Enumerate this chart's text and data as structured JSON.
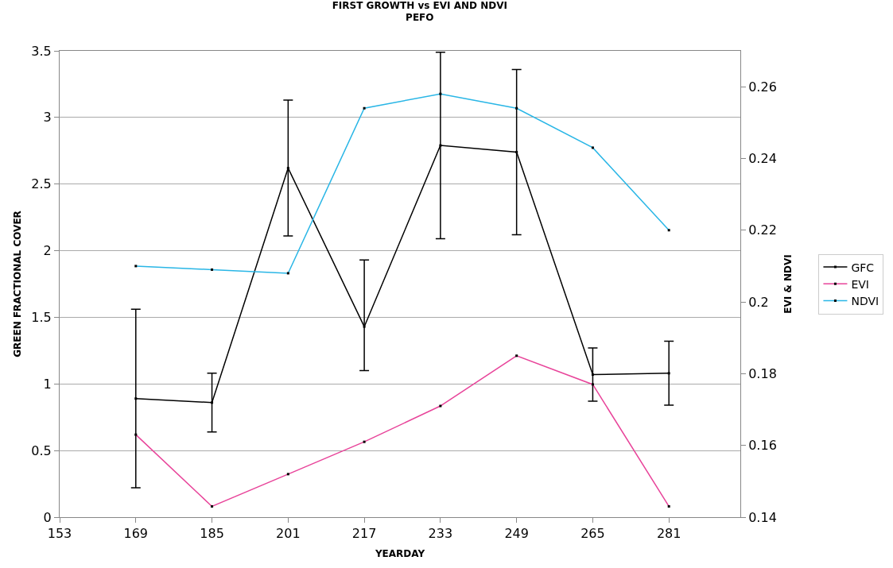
{
  "chart_data": {
    "type": "line",
    "title": "FIRST GROWTH vs EVI AND NDVI",
    "subtitle": "PEFO",
    "xlabel": "YEARDAY",
    "ylabel": "GREEN FRACTIONAL COVER",
    "y2label": "EVI & NDVI",
    "x": [
      169,
      185,
      201,
      217,
      233,
      249,
      265,
      281
    ],
    "xlim": [
      153,
      296
    ],
    "xticks": [
      153,
      169,
      185,
      201,
      217,
      233,
      249,
      265,
      281
    ],
    "ylim": [
      0,
      3.5
    ],
    "yticks": [
      0,
      0.5,
      1,
      1.5,
      2,
      2.5,
      3,
      3.5
    ],
    "y2lim": [
      0.14,
      0.27
    ],
    "y2ticks": [
      0.14,
      0.16,
      0.18,
      0.2,
      0.22,
      0.24,
      0.26
    ],
    "grid": "y",
    "legend": "right",
    "marker": "square",
    "line_style": "solid",
    "series": [
      {
        "name": "GFC",
        "color": "#000000",
        "values": [
          0.89,
          0.86,
          2.62,
          1.43,
          2.79,
          2.74,
          1.07,
          1.08
        ],
        "errors": [
          0.67,
          0.22,
          0.51,
          [
            1.1,
            1.93
          ],
          0.7,
          0.62,
          0.2,
          0.24
        ]
      },
      {
        "name": "EVI",
        "color": "#e8449a",
        "axis": "y2",
        "values": [
          0.163,
          0.143,
          0.152,
          0.161,
          0.171,
          0.185,
          0.177,
          0.143
        ]
      },
      {
        "name": "NDVI",
        "color": "#29b6e6",
        "axis": "y2",
        "values": [
          0.21,
          0.209,
          0.208,
          0.254,
          0.258,
          0.254,
          0.243,
          0.22
        ]
      }
    ]
  }
}
